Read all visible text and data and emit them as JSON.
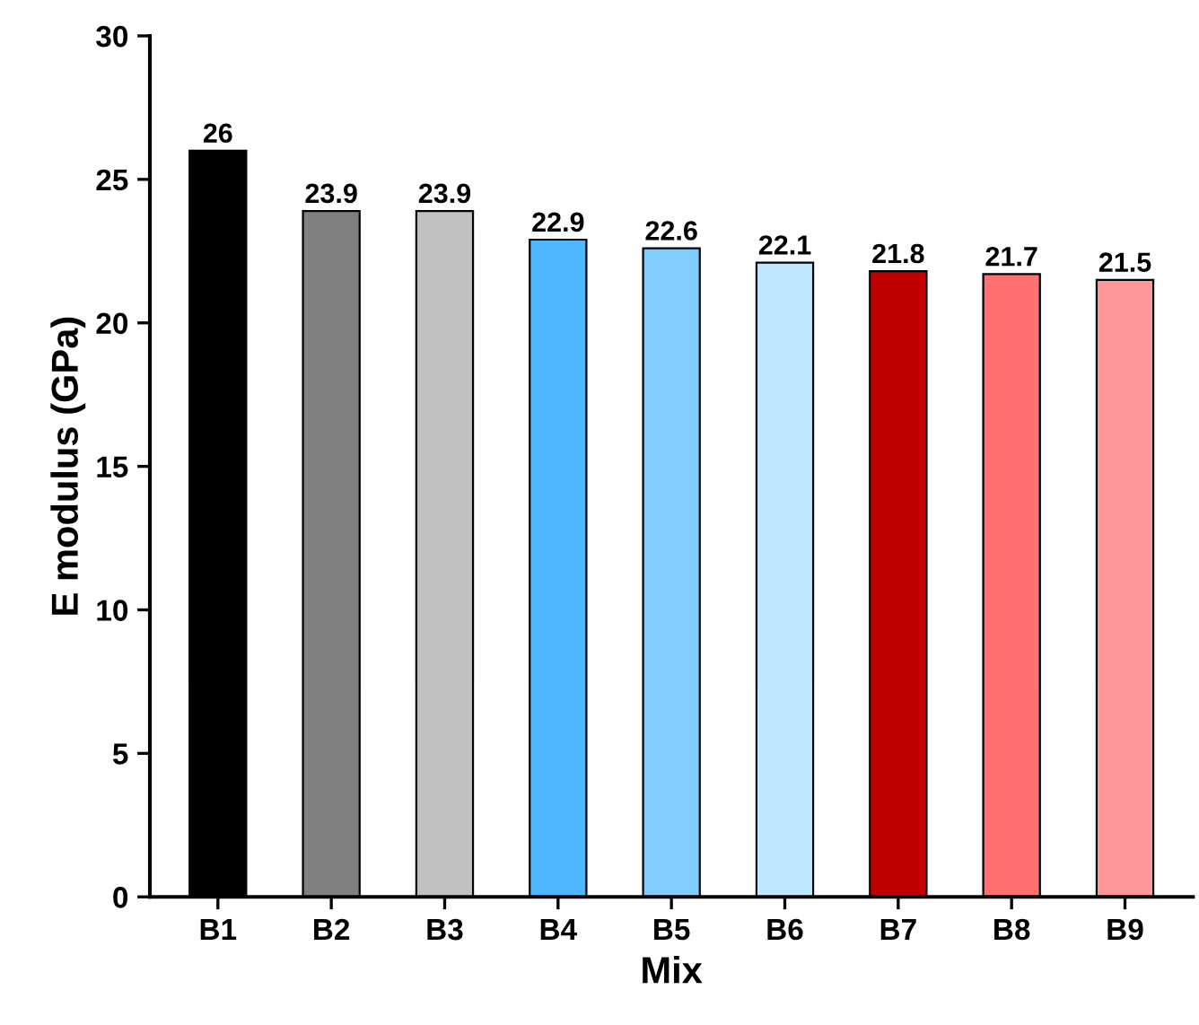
{
  "chart_data": {
    "type": "bar",
    "xlabel": "Mix",
    "ylabel": "E modulus (GPa)",
    "categories": [
      "B1",
      "B2",
      "B3",
      "B4",
      "B5",
      "B6",
      "B7",
      "B8",
      "B9"
    ],
    "values": [
      26,
      23.9,
      23.9,
      22.9,
      22.6,
      22.1,
      21.8,
      21.7,
      21.5
    ],
    "colors": [
      "#000000",
      "#808080",
      "#c0c0c0",
      "#4db8ff",
      "#80ccff",
      "#bfe6ff",
      "#c00000",
      "#ff7070",
      "#ff9999"
    ],
    "ylim": [
      0,
      30
    ],
    "yticks": [
      0,
      5,
      10,
      15,
      20,
      25,
      30
    ],
    "data_labels": true,
    "grid": false,
    "legend": false
  }
}
